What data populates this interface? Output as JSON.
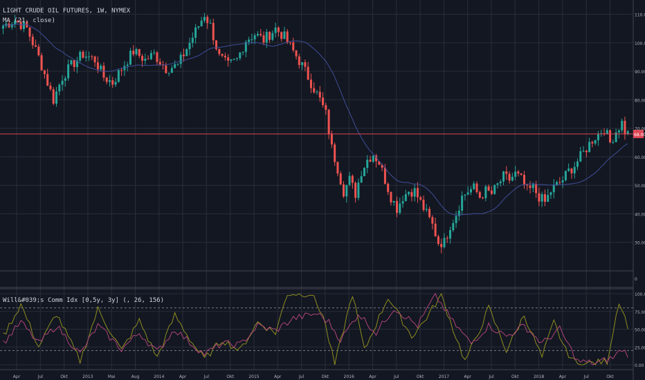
{
  "header": {
    "symbol_title": "LIGHT CRUDE OIL FUTURES, 1W, NYMEX",
    "ma_legend": "MA (21, close)",
    "wcci_legend": "Will&#039;s Comm Idx [0,5y, 3y] (, 26, 156)"
  },
  "colors": {
    "background": "#131722",
    "grid": "#2a2e39",
    "candle_up": "#26a69a",
    "candle_down": "#ef5350",
    "ma_line": "#3f4f99",
    "price_line": "#e04555",
    "wcci_line_1": "#8f8f1f",
    "wcci_line_2": "#b0457a"
  },
  "chart_data": [
    {
      "type": "candlestick",
      "title": "LIGHT CRUDE OIL FUTURES, 1W, NYMEX",
      "y_ticks": [
        "30.00",
        "40.00",
        "50.00",
        "60.00",
        "70.00",
        "80.00",
        "90.00",
        "100.00",
        "110.00"
      ],
      "y_range": [
        20,
        115
      ],
      "extra_axis_tick": "0",
      "x_ticks": [
        "Apr",
        "Jul",
        "Okt",
        "2013",
        "Mai",
        "Aug",
        "2014",
        "Apr",
        "Jul",
        "Okt",
        "2015",
        "Apr",
        "Jul",
        "Okt",
        "2016",
        "Apr",
        "Jul",
        "Okt",
        "2017",
        "Apr",
        "Jul",
        "Okt",
        "2018",
        "Apr",
        "Jul",
        "Okt"
      ],
      "last_price_label": "68.00",
      "last_price": 68.0,
      "close_anchors": [
        [
          0,
          106
        ],
        [
          4,
          108
        ],
        [
          8,
          105
        ],
        [
          12,
          95
        ],
        [
          15,
          86
        ],
        [
          17,
          80
        ],
        [
          20,
          88
        ],
        [
          23,
          92
        ],
        [
          27,
          96
        ],
        [
          31,
          94
        ],
        [
          34,
          88
        ],
        [
          37,
          86
        ],
        [
          40,
          91
        ],
        [
          44,
          97
        ],
        [
          48,
          94
        ],
        [
          51,
          96
        ],
        [
          55,
          91
        ],
        [
          59,
          92
        ],
        [
          62,
          98
        ],
        [
          65,
          104
        ],
        [
          68,
          110
        ],
        [
          70,
          106
        ],
        [
          73,
          95
        ],
        [
          76,
          92
        ],
        [
          79,
          94
        ],
        [
          82,
          101
        ],
        [
          85,
          103
        ],
        [
          88,
          101
        ],
        [
          92,
          105
        ],
        [
          95,
          102
        ],
        [
          98,
          97
        ],
        [
          101,
          92
        ],
        [
          104,
          86
        ],
        [
          107,
          80
        ],
        [
          109,
          75
        ],
        [
          111,
          63
        ],
        [
          113,
          56
        ],
        [
          115,
          48
        ],
        [
          117,
          52
        ],
        [
          119,
          47
        ],
        [
          121,
          55
        ],
        [
          123,
          59
        ],
        [
          125,
          61
        ],
        [
          127,
          58
        ],
        [
          129,
          52
        ],
        [
          131,
          46
        ],
        [
          133,
          42
        ],
        [
          135,
          46
        ],
        [
          137,
          48
        ],
        [
          139,
          48
        ],
        [
          141,
          44
        ],
        [
          143,
          40
        ],
        [
          145,
          36
        ],
        [
          147,
          30
        ],
        [
          149,
          30
        ],
        [
          151,
          36
        ],
        [
          153,
          40
        ],
        [
          155,
          46
        ],
        [
          157,
          48
        ],
        [
          159,
          49
        ],
        [
          161,
          46
        ],
        [
          163,
          48
        ],
        [
          165,
          47
        ],
        [
          167,
          50
        ],
        [
          169,
          53
        ],
        [
          171,
          52
        ],
        [
          173,
          54
        ],
        [
          175,
          52
        ],
        [
          177,
          48
        ],
        [
          179,
          49
        ],
        [
          181,
          46
        ],
        [
          183,
          44
        ],
        [
          185,
          48
        ],
        [
          187,
          50
        ],
        [
          189,
          52
        ],
        [
          191,
          55
        ],
        [
          193,
          57
        ],
        [
          195,
          60
        ],
        [
          197,
          63
        ],
        [
          199,
          66
        ],
        [
          201,
          68
        ],
        [
          203,
          70
        ],
        [
          205,
          65
        ],
        [
          207,
          69
        ],
        [
          209,
          72
        ],
        [
          210,
          69
        ],
        [
          211,
          68
        ]
      ],
      "ma_period": 21
    },
    {
      "type": "line",
      "title": "Will&#039;s Comm Idx [0,5y, 3y] (, 26, 156)",
      "y_ticks": [
        "0.00",
        "25.00",
        "50.00",
        "75.00",
        "100.00"
      ],
      "y_range": [
        0,
        100
      ],
      "dashed_levels": [
        20,
        80
      ],
      "series": [
        {
          "color": "#8f8f1f",
          "anchors": [
            [
              0,
              40
            ],
            [
              6,
              85
            ],
            [
              12,
              25
            ],
            [
              18,
              72
            ],
            [
              26,
              5
            ],
            [
              32,
              78
            ],
            [
              40,
              20
            ],
            [
              46,
              62
            ],
            [
              52,
              10
            ],
            [
              58,
              70
            ],
            [
              64,
              30
            ],
            [
              68,
              8
            ],
            [
              74,
              35
            ],
            [
              80,
              20
            ],
            [
              86,
              60
            ],
            [
              92,
              45
            ],
            [
              96,
              100
            ],
            [
              104,
              100
            ],
            [
              108,
              70
            ],
            [
              112,
              0
            ],
            [
              118,
              100
            ],
            [
              122,
              20
            ],
            [
              130,
              95
            ],
            [
              138,
              40
            ],
            [
              142,
              60
            ],
            [
              148,
              98
            ],
            [
              152,
              50
            ],
            [
              156,
              5
            ],
            [
              160,
              40
            ],
            [
              164,
              80
            ],
            [
              170,
              20
            ],
            [
              176,
              70
            ],
            [
              182,
              10
            ],
            [
              186,
              60
            ],
            [
              190,
              20
            ],
            [
              194,
              0
            ],
            [
              200,
              3
            ],
            [
              204,
              5
            ],
            [
              208,
              90
            ],
            [
              211,
              55
            ]
          ]
        },
        {
          "color": "#b0457a",
          "anchors": [
            [
              0,
              30
            ],
            [
              6,
              60
            ],
            [
              12,
              30
            ],
            [
              18,
              55
            ],
            [
              26,
              15
            ],
            [
              32,
              55
            ],
            [
              40,
              22
            ],
            [
              46,
              45
            ],
            [
              52,
              18
            ],
            [
              58,
              50
            ],
            [
              64,
              28
            ],
            [
              68,
              15
            ],
            [
              74,
              30
            ],
            [
              80,
              28
            ],
            [
              86,
              55
            ],
            [
              92,
              48
            ],
            [
              98,
              65
            ],
            [
              106,
              72
            ],
            [
              110,
              60
            ],
            [
              114,
              35
            ],
            [
              120,
              72
            ],
            [
              126,
              45
            ],
            [
              132,
              80
            ],
            [
              140,
              55
            ],
            [
              146,
              98
            ],
            [
              152,
              60
            ],
            [
              158,
              30
            ],
            [
              164,
              55
            ],
            [
              170,
              40
            ],
            [
              176,
              55
            ],
            [
              182,
              30
            ],
            [
              188,
              50
            ],
            [
              194,
              5
            ],
            [
              200,
              2
            ],
            [
              206,
              10
            ],
            [
              209,
              22
            ],
            [
              211,
              15
            ]
          ]
        }
      ]
    }
  ]
}
